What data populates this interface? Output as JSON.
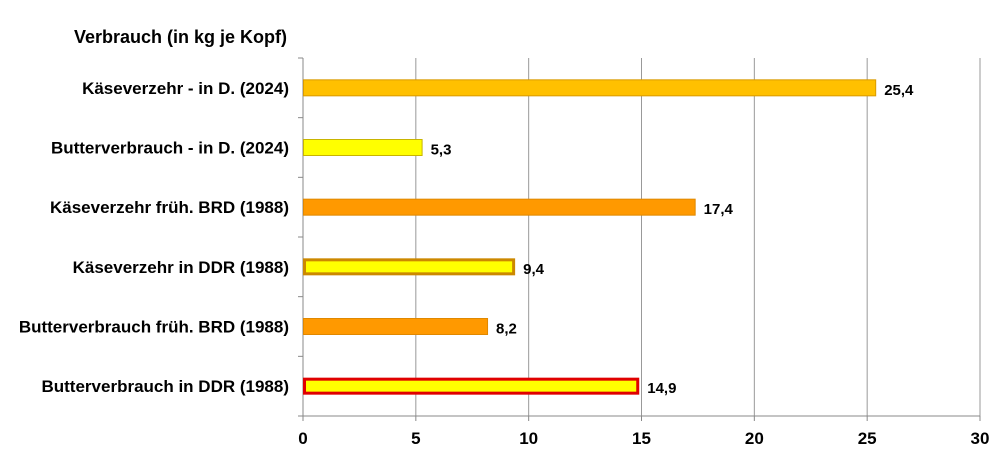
{
  "chart_data": {
    "type": "bar",
    "orientation": "horizontal",
    "title": "Verbrauch (in kg je Kopf)",
    "xlabel": "",
    "ylabel": "",
    "xlim": [
      0,
      30
    ],
    "xticks": [
      "0",
      "5",
      "10",
      "15",
      "20",
      "25",
      "30"
    ],
    "grid": true,
    "categories": [
      "Käseverzehr - in D. (2024)",
      "Butterverbrauch - in D. (2024)",
      "Käseverzehr früh. BRD (1988)",
      "Käseverzehr in DDR (1988)",
      "Butterverbrauch früh. BRD (1988)",
      "Butterverbrauch in DDR (1988)"
    ],
    "values": [
      25.4,
      5.3,
      17.4,
      9.4,
      8.2,
      14.9
    ],
    "value_labels": [
      "25,4",
      "5,3",
      "17,4",
      "9,4",
      "8,2",
      "14,9"
    ],
    "bar_fills": [
      "#FFC000",
      "#FFFF00",
      "#FF9900",
      "#FFFF00",
      "#FF9900",
      "#FFFF00"
    ],
    "bar_borders": [
      "#D99A00",
      "#C8B400",
      "#E08800",
      "#CC8800",
      "#E08800",
      "#E00000"
    ],
    "bar_border_weights": [
      "thin",
      "thin",
      "thin",
      "thick",
      "thin",
      "thick"
    ],
    "colors": {
      "gridline": "#999999",
      "axis": "#888888",
      "text": "#000000"
    }
  }
}
